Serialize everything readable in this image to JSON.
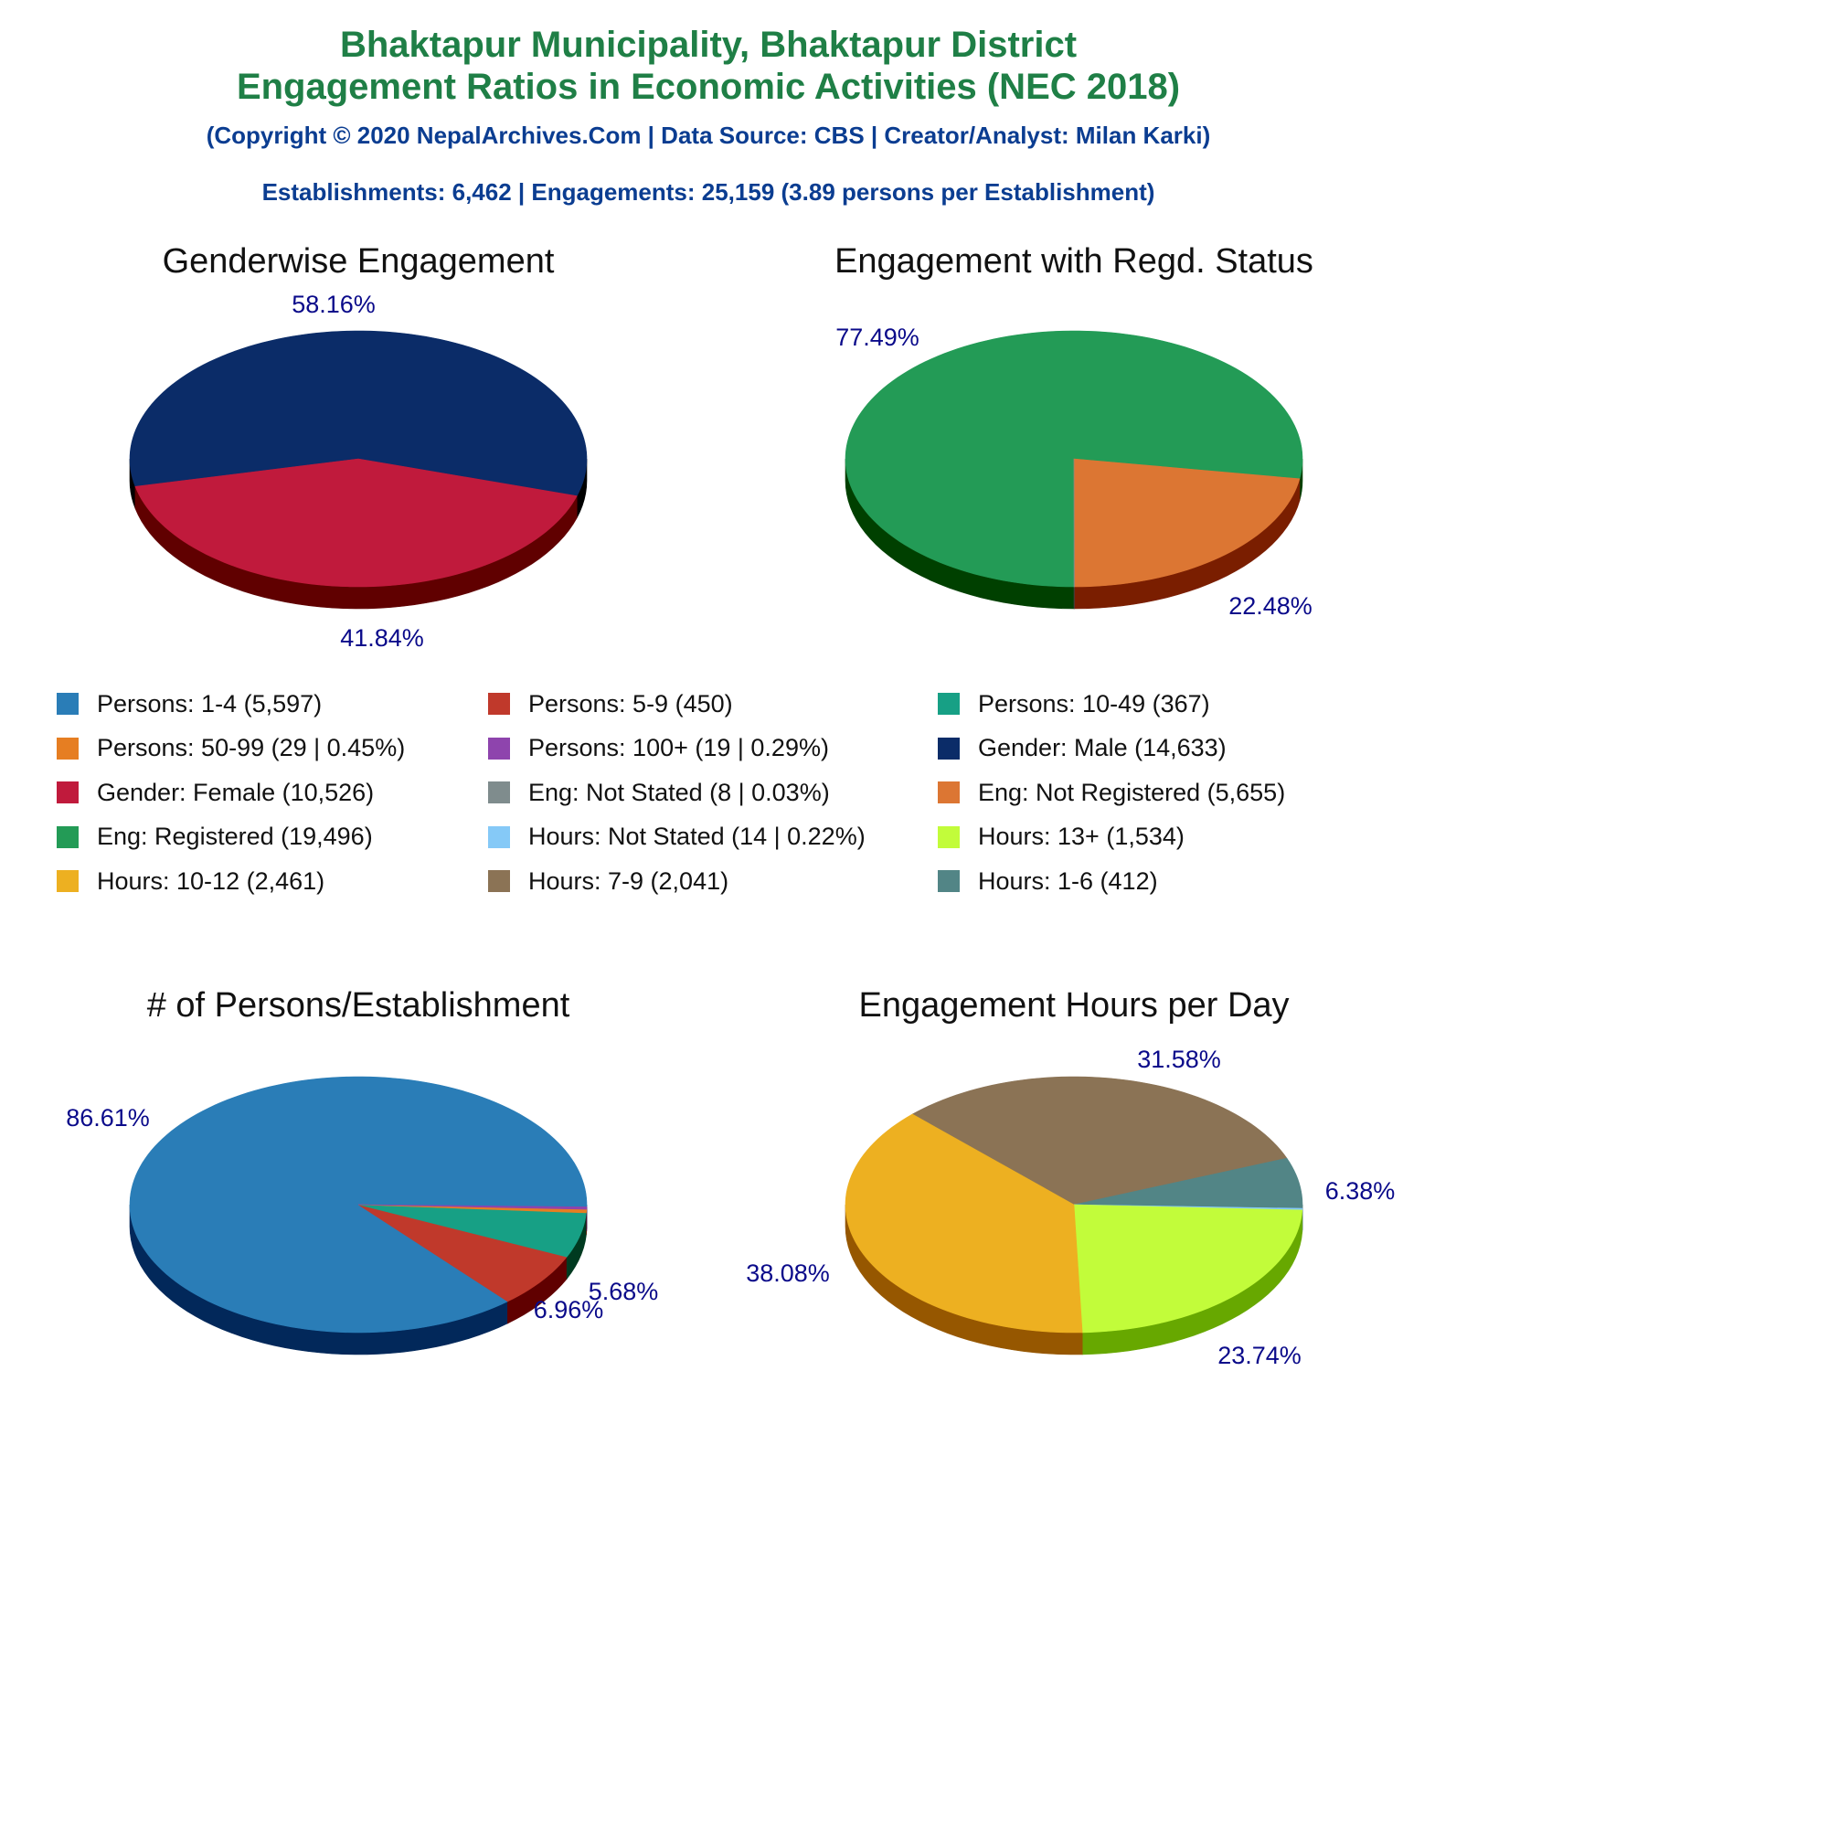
{
  "header": {
    "title_line1": "Bhaktapur Municipality, Bhaktapur District",
    "title_line2": "Engagement Ratios in Economic Activities (NEC 2018)",
    "copyright": "(Copyright © 2020 NepalArchives.Com | Data Source: CBS | Creator/Analyst: Milan Karki)",
    "summary": "Establishments: 6,462 | Engagements: 25,159 (3.89 persons per Establishment)"
  },
  "legend": [
    {
      "label": "Persons: 1-4 (5,597)",
      "color": "#2a7db7"
    },
    {
      "label": "Persons: 5-9 (450)",
      "color": "#c0392b"
    },
    {
      "label": "Persons: 10-49 (367)",
      "color": "#17a085"
    },
    {
      "label": "Persons: 50-99 (29 | 0.45%)",
      "color": "#e67e22"
    },
    {
      "label": "Persons: 100+ (19 | 0.29%)",
      "color": "#8e44ad"
    },
    {
      "label": "Gender: Male (14,633)",
      "color": "#0b2c68"
    },
    {
      "label": "Gender: Female (10,526)",
      "color": "#c01a3c"
    },
    {
      "label": "Eng: Not Stated (8 | 0.03%)",
      "color": "#7f8c8d"
    },
    {
      "label": "Eng: Not Registered (5,655)",
      "color": "#dc7633"
    },
    {
      "label": "Eng: Registered (19,496)",
      "color": "#239b56"
    },
    {
      "label": "Hours: Not Stated (14 | 0.22%)",
      "color": "#85c9f7"
    },
    {
      "label": "Hours: 13+ (1,534)",
      "color": "#c2fc3a"
    },
    {
      "label": "Hours: 10-12 (2,461)",
      "color": "#edb021"
    },
    {
      "label": "Hours: 7-9 (2,041)",
      "color": "#8b7355"
    },
    {
      "label": "Hours: 1-6 (412)",
      "color": "#528586"
    }
  ],
  "chart_data": [
    {
      "type": "pie",
      "title": "Genderwise Engagement",
      "slices": [
        {
          "name": "Gender: Male",
          "value": 14633,
          "label": "58.16%",
          "color": "#0b2c68",
          "side": "#000000"
        },
        {
          "name": "Gender: Female",
          "value": 10526,
          "label": "41.84%",
          "color": "#c01a3c",
          "side": "#600000"
        }
      ]
    },
    {
      "type": "pie",
      "title": "Engagement with Regd. Status",
      "slices": [
        {
          "name": "Eng: Registered",
          "value": 19496,
          "label": "77.49%",
          "color": "#239b56",
          "side": "#004000"
        },
        {
          "name": "Eng: Not Registered",
          "value": 5655,
          "label": "22.48%",
          "color": "#dc7633",
          "side": "#7a1e00"
        },
        {
          "name": "Eng: Not Stated",
          "value": 8,
          "label": "",
          "color": "#7f8c8d",
          "side": "#404040"
        }
      ]
    },
    {
      "type": "pie",
      "title": "# of Persons/Establishment",
      "slices": [
        {
          "name": "Persons: 1-4",
          "value": 5597,
          "label": "86.61%",
          "color": "#2a7db7",
          "side": "#02285a"
        },
        {
          "name": "Persons: 5-9",
          "value": 450,
          "label": "6.96%",
          "color": "#c0392b",
          "side": "#600000"
        },
        {
          "name": "Persons: 10-49",
          "value": 367,
          "label": "5.68%",
          "color": "#17a085",
          "side": "#003a20"
        },
        {
          "name": "Persons: 50-99",
          "value": 29,
          "label": "",
          "color": "#e67e22",
          "side": "#6a2000"
        },
        {
          "name": "Persons: 100+",
          "value": 19,
          "label": "",
          "color": "#8e44ad",
          "side": "#3a0050"
        }
      ]
    },
    {
      "type": "pie",
      "title": "Engagement Hours per Day",
      "slices": [
        {
          "name": "Hours: 7-9",
          "value": 2041,
          "label": "31.58%",
          "color": "#8b7355",
          "side": "#3a2a10"
        },
        {
          "name": "Hours: 1-6",
          "value": 412,
          "label": "6.38%",
          "color": "#528586",
          "side": "#143636"
        },
        {
          "name": "Hours: Not Stated",
          "value": 14,
          "label": "",
          "color": "#85c9f7",
          "side": "#2a6a9a"
        },
        {
          "name": "Hours: 13+",
          "value": 1534,
          "label": "23.74%",
          "color": "#c2fc3a",
          "side": "#67a800"
        },
        {
          "name": "Hours: 10-12",
          "value": 2461,
          "label": "38.08%",
          "color": "#edb021",
          "side": "#965700"
        }
      ]
    }
  ]
}
